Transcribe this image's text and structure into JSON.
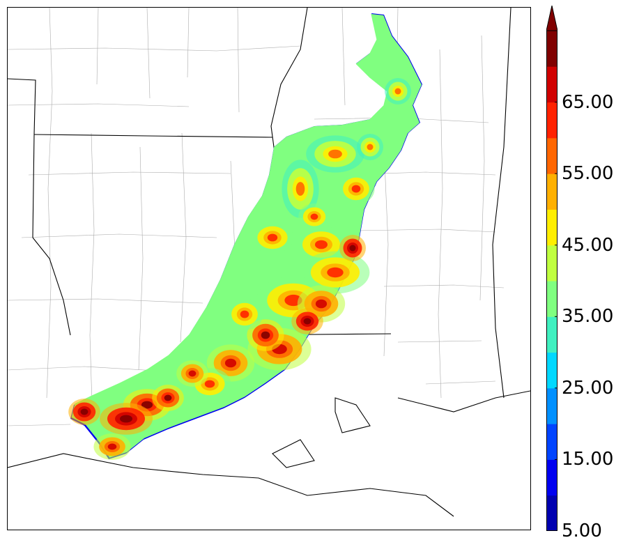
{
  "colorbar": {
    "extend": "max",
    "levels": [
      5,
      10,
      15,
      20,
      25,
      30,
      35,
      40,
      45,
      50,
      55,
      60,
      65,
      70
    ],
    "colors": [
      "#0000b0",
      "#0000f0",
      "#0044ff",
      "#0090ff",
      "#00d8ff",
      "#40f0c0",
      "#80ff80",
      "#c0ff40",
      "#ffee00",
      "#ffb000",
      "#ff6600",
      "#ff2200",
      "#d00000",
      "#800000"
    ],
    "tick_labels": [
      "5.00",
      "15.00",
      "25.00",
      "35.00",
      "45.00",
      "55.00",
      "65.00"
    ]
  },
  "map": {
    "land_color": "#ffffff",
    "state_border_color": "#000000",
    "county_border_color": "#aaaaaa"
  }
}
